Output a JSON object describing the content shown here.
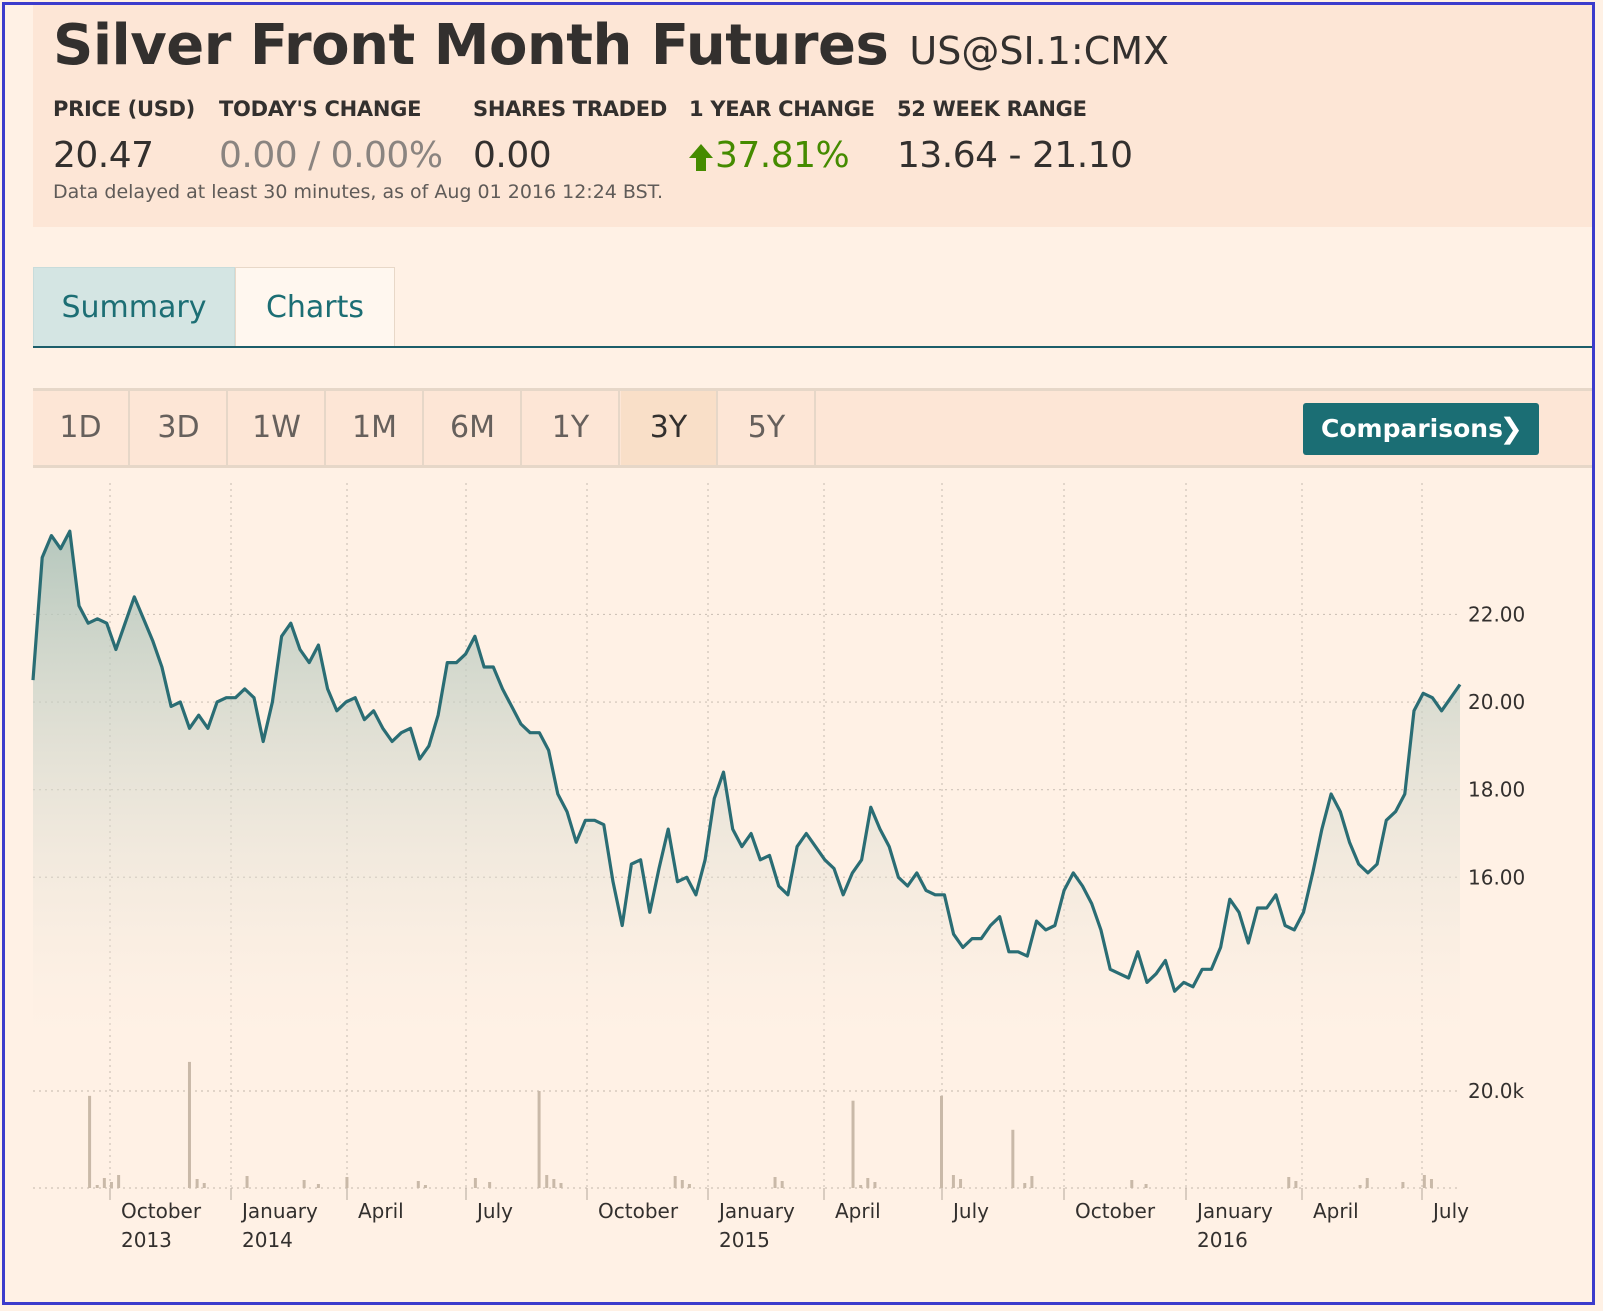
{
  "header": {
    "title": "Silver Front Month Futures",
    "symbol": "US@SI.1:CMX",
    "stats": [
      {
        "label": "PRICE (USD)",
        "value": "20.47"
      },
      {
        "label": "TODAY'S CHANGE",
        "value": "0.00 / 0.00%"
      },
      {
        "label": "SHARES TRADED",
        "value": "0.00"
      },
      {
        "label": "1 YEAR CHANGE",
        "value": "37.81%",
        "direction": "up",
        "color": "#458b00"
      },
      {
        "label": "52 WEEK RANGE",
        "value": "13.64 - 21.10"
      }
    ],
    "delay_note": "Data delayed at least 30 minutes, as of Aug 01 2016 12:24 BST."
  },
  "tabs": [
    {
      "label": "Summary",
      "active": false
    },
    {
      "label": "Charts",
      "active": true
    }
  ],
  "periods": [
    "1D",
    "3D",
    "1W",
    "1M",
    "6M",
    "1Y",
    "3Y",
    "5Y"
  ],
  "active_period": "3Y",
  "comparisons_label": "Comparisons",
  "colors": {
    "accent": "#1b6e74",
    "line": "#2a6d74",
    "background": "#fff1e5",
    "header": "#fde6d6"
  },
  "chart_data": {
    "type": "area",
    "series": [
      {
        "values": [
          20.5,
          23.3,
          23.8,
          23.5,
          23.9,
          22.2,
          21.8,
          21.9,
          21.8,
          21.2,
          21.8,
          22.4,
          21.9,
          21.4,
          20.8,
          19.9,
          20.0,
          19.4,
          19.7,
          19.4,
          20.0,
          20.1,
          20.1,
          20.3,
          20.1,
          19.1,
          20.0,
          21.5,
          21.8,
          21.2,
          20.9,
          21.3,
          20.3,
          19.8,
          20.0,
          20.1,
          19.6,
          19.8,
          19.4,
          19.1,
          19.3,
          19.4,
          18.7,
          19.0,
          19.7,
          20.9,
          20.9,
          21.1,
          21.5,
          20.8,
          20.8,
          20.3,
          19.9,
          19.5,
          19.3,
          19.3,
          18.9,
          17.9,
          17.5,
          16.8,
          17.3,
          17.3,
          17.2,
          15.9,
          14.9,
          16.3,
          16.4,
          15.2,
          16.2,
          17.1,
          15.9,
          16.0,
          15.6,
          16.4,
          17.8,
          18.4,
          17.1,
          16.7,
          17.0,
          16.4,
          16.5,
          15.8,
          15.6,
          16.7,
          17.0,
          16.7,
          16.4,
          16.2,
          15.6,
          16.1,
          16.4,
          17.6,
          17.1,
          16.7,
          16.0,
          15.8,
          16.1,
          15.7,
          15.6,
          15.6,
          14.7,
          14.4,
          14.6,
          14.6,
          14.9,
          15.1,
          14.3,
          14.3,
          14.2,
          15.0,
          14.8,
          14.9,
          15.7,
          16.1,
          15.8,
          15.4,
          14.8,
          13.9,
          13.8,
          13.7,
          14.3,
          13.6,
          13.8,
          14.1,
          13.4,
          13.6,
          13.5,
          13.9,
          13.9,
          14.4,
          15.5,
          15.2,
          14.5,
          15.3,
          15.3,
          15.6,
          14.9,
          14.8,
          15.2,
          16.1,
          17.1,
          17.9,
          17.5,
          16.8,
          16.3,
          16.1,
          16.3,
          17.3,
          17.5,
          17.9,
          19.8,
          20.2,
          20.1,
          19.8,
          20.1,
          20.4
        ]
      }
    ],
    "volume": [
      {
        "x": 0.04,
        "v": 19
      },
      {
        "x": 0.11,
        "v": 26
      },
      {
        "x": 0.355,
        "v": 20
      },
      {
        "x": 0.575,
        "v": 18
      },
      {
        "x": 0.637,
        "v": 19
      },
      {
        "x": 0.687,
        "v": 12
      }
    ],
    "x_tick_labels": [
      {
        "label": "October",
        "sub": "2013"
      },
      {
        "label": "January",
        "sub": "2014"
      },
      {
        "label": "April",
        "sub": ""
      },
      {
        "label": "July",
        "sub": ""
      },
      {
        "label": "October",
        "sub": ""
      },
      {
        "label": "January",
        "sub": "2015"
      },
      {
        "label": "April",
        "sub": ""
      },
      {
        "label": "July",
        "sub": ""
      },
      {
        "label": "October",
        "sub": ""
      },
      {
        "label": "January",
        "sub": "2016"
      },
      {
        "label": "April",
        "sub": ""
      },
      {
        "label": "July",
        "sub": ""
      }
    ],
    "y_ticks": [
      22,
      20,
      18,
      16
    ],
    "y_tick_labels": [
      "22.00",
      "20.00",
      "18.00",
      "16.00"
    ],
    "ylim": [
      12.4,
      25.0
    ],
    "volume_tick_label": "20.0k",
    "volume_tick_value": 20000,
    "grid": true
  }
}
